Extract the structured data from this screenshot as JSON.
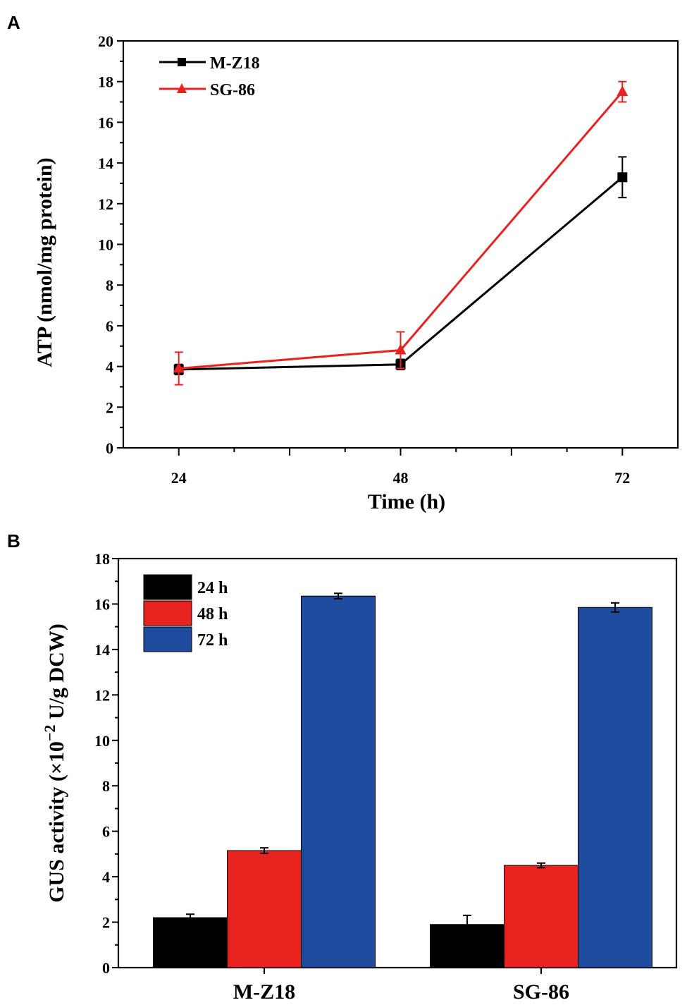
{
  "chart_data": [
    {
      "panel": "A",
      "type": "line",
      "title": "",
      "xlabel": "Time (h)",
      "ylabel": "ATP (nmol/mg protein)",
      "x": [
        24,
        48,
        72
      ],
      "x_tick_labels": [
        "24",
        "48",
        "72"
      ],
      "xlim": [
        18,
        78
      ],
      "ylim": [
        0,
        20
      ],
      "y_ticks": [
        0,
        2,
        4,
        6,
        8,
        10,
        12,
        14,
        16,
        18,
        20
      ],
      "legend_position": "top-left",
      "series": [
        {
          "name": "M-Z18",
          "marker": "square",
          "color": "#000000",
          "values": [
            3.85,
            4.1,
            13.3
          ],
          "errors": [
            0.25,
            0.25,
            1.0
          ]
        },
        {
          "name": "SG-86",
          "marker": "triangle",
          "color": "#e8231f",
          "values": [
            3.9,
            4.8,
            17.5
          ],
          "errors": [
            0.8,
            0.9,
            0.5
          ]
        }
      ]
    },
    {
      "panel": "B",
      "type": "bar",
      "title": "",
      "xlabel": "",
      "ylabel_main": "GUS activity (×10",
      "ylabel_sup": "−2",
      "ylabel_tail": " U/g  DCW)",
      "categories": [
        "M-Z18",
        "SG-86"
      ],
      "ylim": [
        0,
        18
      ],
      "y_ticks": [
        0,
        2,
        4,
        6,
        8,
        10,
        12,
        14,
        16,
        18
      ],
      "legend_position": "top-left",
      "series": [
        {
          "name": "24 h",
          "color": "#000000",
          "values": [
            2.2,
            1.9
          ],
          "errors": [
            0.15,
            0.4
          ]
        },
        {
          "name": "48 h",
          "color": "#e8231f",
          "values": [
            5.15,
            4.5
          ],
          "errors": [
            0.12,
            0.1
          ]
        },
        {
          "name": "72 h",
          "color": "#1f4b9e",
          "values": [
            16.35,
            15.85
          ],
          "errors": [
            0.12,
            0.2
          ]
        }
      ]
    }
  ],
  "panel_labels": [
    "A",
    "B"
  ]
}
